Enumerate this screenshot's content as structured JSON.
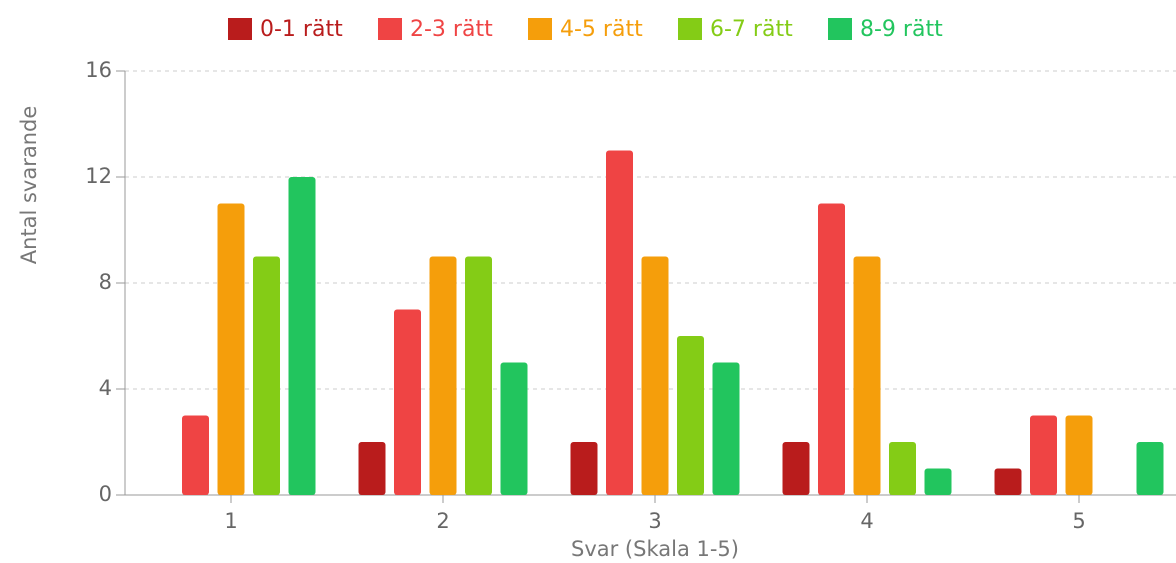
{
  "chart_data": {
    "type": "bar",
    "x_label": "Svar (Skala 1-5)",
    "y_label": "Antal svarande",
    "categories": [
      "1",
      "2",
      "3",
      "4",
      "5"
    ],
    "series": [
      {
        "name": "0-1 rätt",
        "color": "#b91c1c",
        "values": [
          0,
          2,
          2,
          2,
          1
        ]
      },
      {
        "name": "2-3 rätt",
        "color": "#ef4444",
        "values": [
          3,
          7,
          13,
          11,
          3
        ]
      },
      {
        "name": "4-5 rätt",
        "color": "#f59e0b",
        "values": [
          11,
          9,
          9,
          9,
          3
        ]
      },
      {
        "name": "6-7 rätt",
        "color": "#84cc16",
        "values": [
          9,
          9,
          6,
          2,
          0
        ]
      },
      {
        "name": "8-9 rätt",
        "color": "#22c55e",
        "values": [
          12,
          5,
          5,
          1,
          2
        ]
      }
    ],
    "ylim": [
      0,
      16
    ],
    "yticks": [
      0,
      4,
      8,
      12,
      16
    ],
    "grid": true,
    "legend": "top"
  }
}
